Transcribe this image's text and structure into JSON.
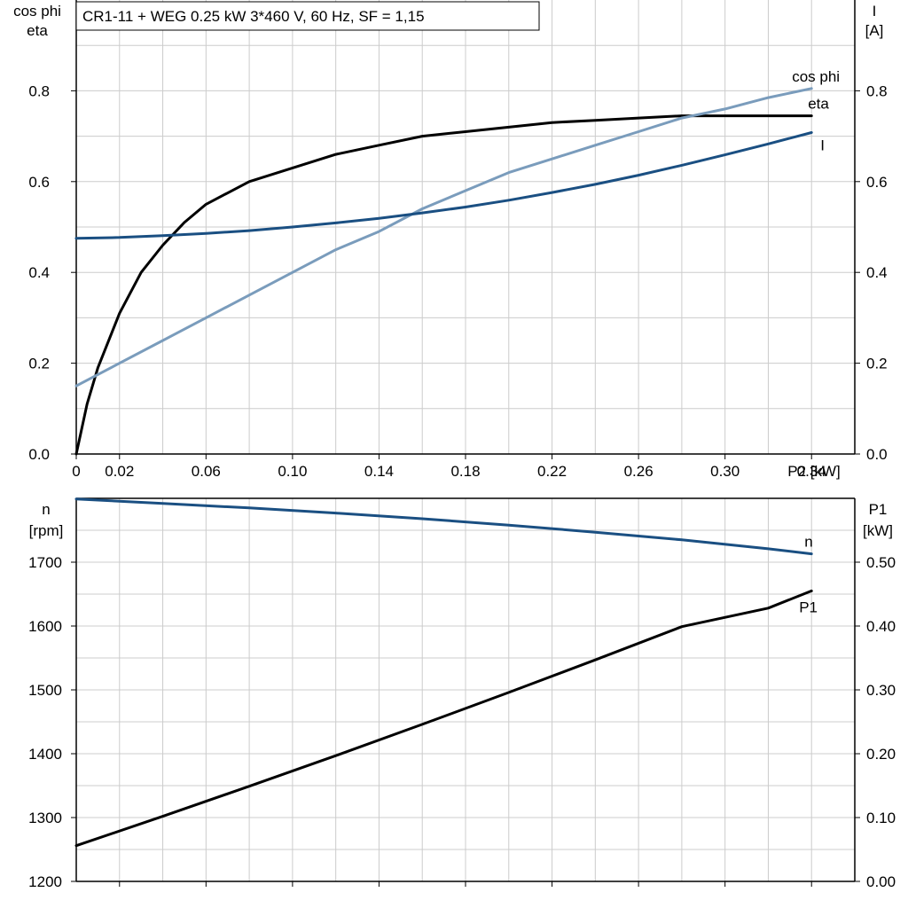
{
  "title": "CR1-11 + WEG   0.25 kW   3*460 V, 60 Hz, SF = 1,15",
  "colors": {
    "eta": "#000000",
    "cos_phi": "#7a9cbc",
    "current": "#1a4f82",
    "speed": "#1a4f82",
    "p1": "#000000",
    "grid": "#cccccc"
  },
  "chart_data": [
    {
      "type": "line",
      "title": "CR1-11 + WEG   0.25 kW   3*460 V, 60 Hz, SF = 1,15",
      "xlabel": "P2 [kW]",
      "ylabel_left": [
        "cos phi",
        "eta"
      ],
      "ylabel_right": [
        "I",
        "[A]"
      ],
      "xlim": [
        0,
        0.36
      ],
      "ylim": [
        0,
        1.0
      ],
      "ylim_right": [
        0,
        1.0
      ],
      "x_ticks": [
        "0",
        "0.02",
        "0.06",
        "0.10",
        "0.14",
        "0.18",
        "0.22",
        "0.26",
        "0.30",
        "0.34"
      ],
      "y_ticks": [
        "0.0",
        "0.2",
        "0.4",
        "0.6",
        "0.8"
      ],
      "y_ticks_right": [
        "0.0",
        "0.2",
        "0.4",
        "0.6",
        "0.8"
      ],
      "grid": true,
      "series": [
        {
          "name": "eta",
          "x": [
            0,
            0.005,
            0.01,
            0.02,
            0.03,
            0.04,
            0.05,
            0.06,
            0.08,
            0.1,
            0.12,
            0.14,
            0.16,
            0.18,
            0.2,
            0.22,
            0.24,
            0.26,
            0.28,
            0.3,
            0.32,
            0.34
          ],
          "y": [
            0,
            0.11,
            0.19,
            0.31,
            0.4,
            0.46,
            0.51,
            0.55,
            0.6,
            0.63,
            0.66,
            0.68,
            0.7,
            0.71,
            0.72,
            0.73,
            0.735,
            0.74,
            0.745,
            0.745,
            0.745,
            0.745
          ]
        },
        {
          "name": "cos phi",
          "x": [
            0,
            0.02,
            0.04,
            0.06,
            0.08,
            0.1,
            0.12,
            0.14,
            0.16,
            0.18,
            0.2,
            0.22,
            0.24,
            0.26,
            0.28,
            0.3,
            0.32,
            0.34
          ],
          "y": [
            0.15,
            0.2,
            0.25,
            0.3,
            0.35,
            0.4,
            0.45,
            0.49,
            0.54,
            0.58,
            0.62,
            0.65,
            0.68,
            0.71,
            0.74,
            0.76,
            0.785,
            0.805
          ]
        },
        {
          "name": "I",
          "x": [
            0,
            0.02,
            0.04,
            0.06,
            0.08,
            0.1,
            0.12,
            0.14,
            0.16,
            0.18,
            0.2,
            0.22,
            0.24,
            0.26,
            0.28,
            0.3,
            0.32,
            0.34
          ],
          "y": [
            0.475,
            0.477,
            0.481,
            0.486,
            0.492,
            0.5,
            0.509,
            0.519,
            0.531,
            0.544,
            0.559,
            0.576,
            0.594,
            0.614,
            0.636,
            0.659,
            0.683,
            0.708
          ]
        }
      ]
    },
    {
      "type": "line",
      "ylabel_left": [
        "n",
        "[rpm]"
      ],
      "ylabel_right": [
        "P1",
        "[kW]"
      ],
      "xlim": [
        0,
        0.36
      ],
      "ylim": [
        1200,
        1800
      ],
      "ylim_right": [
        0,
        0.6
      ],
      "y_ticks": [
        "1200",
        "1300",
        "1400",
        "1500",
        "1600",
        "1700"
      ],
      "y_ticks_right": [
        "0.00",
        "0.10",
        "0.20",
        "0.30",
        "0.40",
        "0.50"
      ],
      "grid": true,
      "series": [
        {
          "name": "n",
          "axis": "left",
          "x": [
            0,
            0.04,
            0.08,
            0.12,
            0.16,
            0.2,
            0.24,
            0.28,
            0.32,
            0.34
          ],
          "y": [
            1799,
            1792,
            1785,
            1777,
            1768,
            1758,
            1747,
            1735,
            1721,
            1713
          ]
        },
        {
          "name": "P1",
          "axis": "right",
          "x": [
            0,
            0.04,
            0.08,
            0.12,
            0.16,
            0.2,
            0.24,
            0.28,
            0.32,
            0.34
          ],
          "y": [
            0.056,
            0.102,
            0.149,
            0.197,
            0.246,
            0.296,
            0.347,
            0.399,
            0.428,
            0.455
          ]
        }
      ]
    }
  ]
}
